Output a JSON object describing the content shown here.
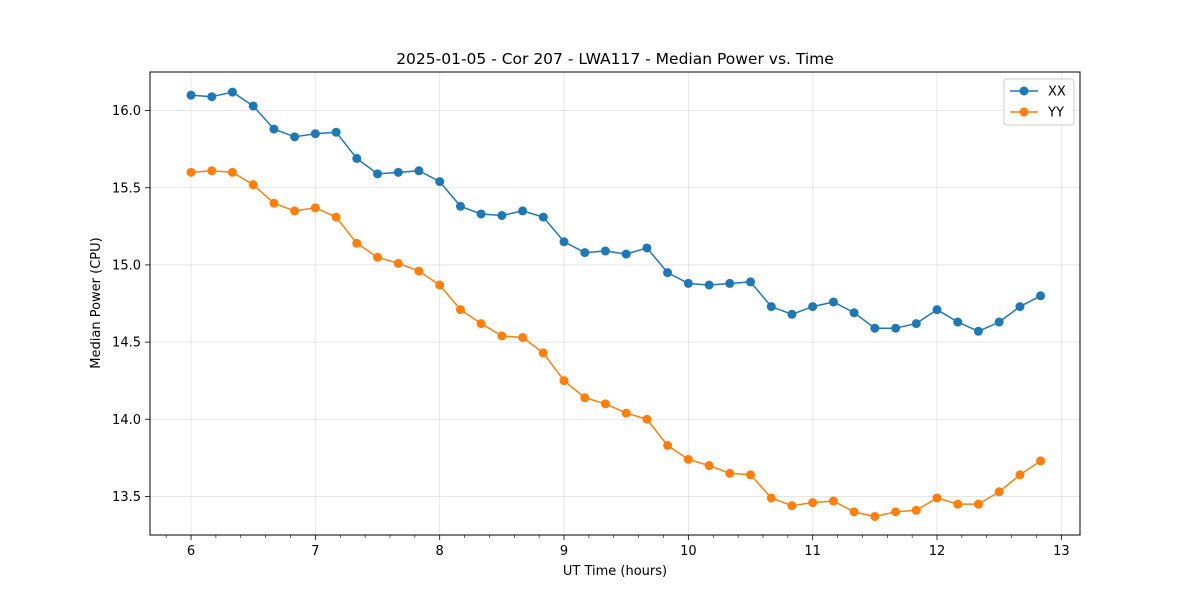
{
  "chart_data": {
    "type": "line",
    "title": "2025-01-05 - Cor 207 - LWA117 - Median Power vs. Time",
    "xlabel": "UT Time (hours)",
    "ylabel": "Median Power (CPU)",
    "xlim": [
      5.67,
      13.15
    ],
    "ylim": [
      13.25,
      16.25
    ],
    "xticks": [
      6,
      7,
      8,
      9,
      10,
      11,
      12,
      13
    ],
    "yticks": [
      13.5,
      14.0,
      14.5,
      15.0,
      15.5,
      16.0
    ],
    "ytick_labels": [
      "13.5",
      "14.0",
      "14.5",
      "15.0",
      "15.5",
      "16.0"
    ],
    "grid": true,
    "legend_position": "top-right",
    "x": [
      6.0,
      6.167,
      6.333,
      6.5,
      6.667,
      6.833,
      7.0,
      7.167,
      7.333,
      7.5,
      7.667,
      7.833,
      8.0,
      8.167,
      8.333,
      8.5,
      8.667,
      8.833,
      9.0,
      9.167,
      9.333,
      9.5,
      9.667,
      9.833,
      10.0,
      10.167,
      10.333,
      10.5,
      10.667,
      10.833,
      11.0,
      11.167,
      11.333,
      11.5,
      11.667,
      11.833,
      12.0,
      12.167,
      12.333,
      12.5,
      12.667,
      12.833
    ],
    "series": [
      {
        "name": "XX",
        "color": "#1f77b4",
        "values": [
          16.1,
          16.09,
          16.12,
          16.03,
          15.88,
          15.83,
          15.85,
          15.86,
          15.69,
          15.59,
          15.6,
          15.61,
          15.54,
          15.38,
          15.33,
          15.32,
          15.35,
          15.31,
          15.15,
          15.08,
          15.09,
          15.07,
          15.11,
          14.95,
          14.88,
          14.87,
          14.88,
          14.89,
          14.73,
          14.68,
          14.73,
          14.76,
          14.69,
          14.59,
          14.59,
          14.62,
          14.71,
          14.63,
          14.57,
          14.63,
          14.73,
          14.8
        ]
      },
      {
        "name": "YY",
        "color": "#ff7f0e",
        "values": [
          15.6,
          15.61,
          15.6,
          15.52,
          15.4,
          15.35,
          15.37,
          15.31,
          15.14,
          15.05,
          15.01,
          14.96,
          14.87,
          14.71,
          14.62,
          14.54,
          14.53,
          14.43,
          14.25,
          14.14,
          14.1,
          14.04,
          14.0,
          13.83,
          13.74,
          13.7,
          13.65,
          13.64,
          13.49,
          13.44,
          13.46,
          13.47,
          13.4,
          13.37,
          13.4,
          13.41,
          13.49,
          13.45,
          13.45,
          13.53,
          13.64,
          13.73
        ]
      }
    ]
  }
}
